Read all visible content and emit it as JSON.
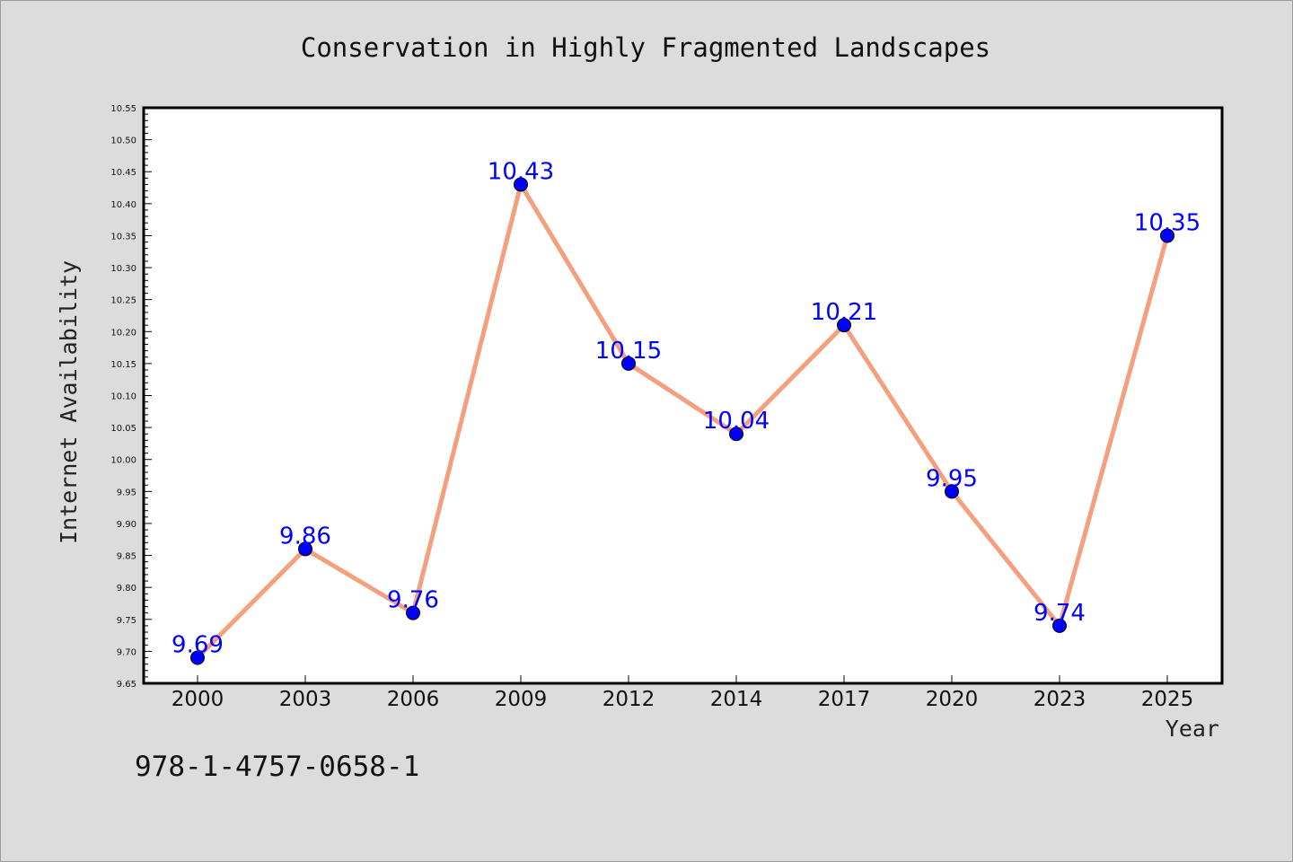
{
  "chart_data": {
    "type": "line",
    "title": "Conservation in Highly Fragmented Landscapes",
    "xlabel": "Year",
    "ylabel": "Internet Availability",
    "categories": [
      "2000",
      "2003",
      "2006",
      "2009",
      "2012",
      "2014",
      "2017",
      "2020",
      "2023",
      "2025"
    ],
    "series": [
      {
        "values": [
          9.69,
          9.86,
          9.76,
          10.43,
          10.15,
          10.04,
          10.21,
          9.95,
          9.74,
          10.35
        ],
        "labels": [
          "9.69",
          "9.86",
          "9.76",
          "10.43",
          "10.15",
          "10.04",
          "10.21",
          "9.95",
          "9.74",
          "10.35"
        ],
        "line_color": "#f4a07e",
        "marker_color": "#0000ff"
      }
    ],
    "ylim": [
      9.65,
      10.55
    ],
    "yticks": [
      "9.65",
      "9.70",
      "9.75",
      "9.80",
      "9.85",
      "9.90",
      "9.95",
      "10.00",
      "10.05",
      "10.10",
      "10.15",
      "10.20",
      "10.25",
      "10.30",
      "10.35",
      "10.40",
      "10.45",
      "10.50",
      "10.55"
    ],
    "grid": false,
    "legend": "none"
  },
  "footer": {
    "isbn": "978-1-4757-0658-1"
  }
}
